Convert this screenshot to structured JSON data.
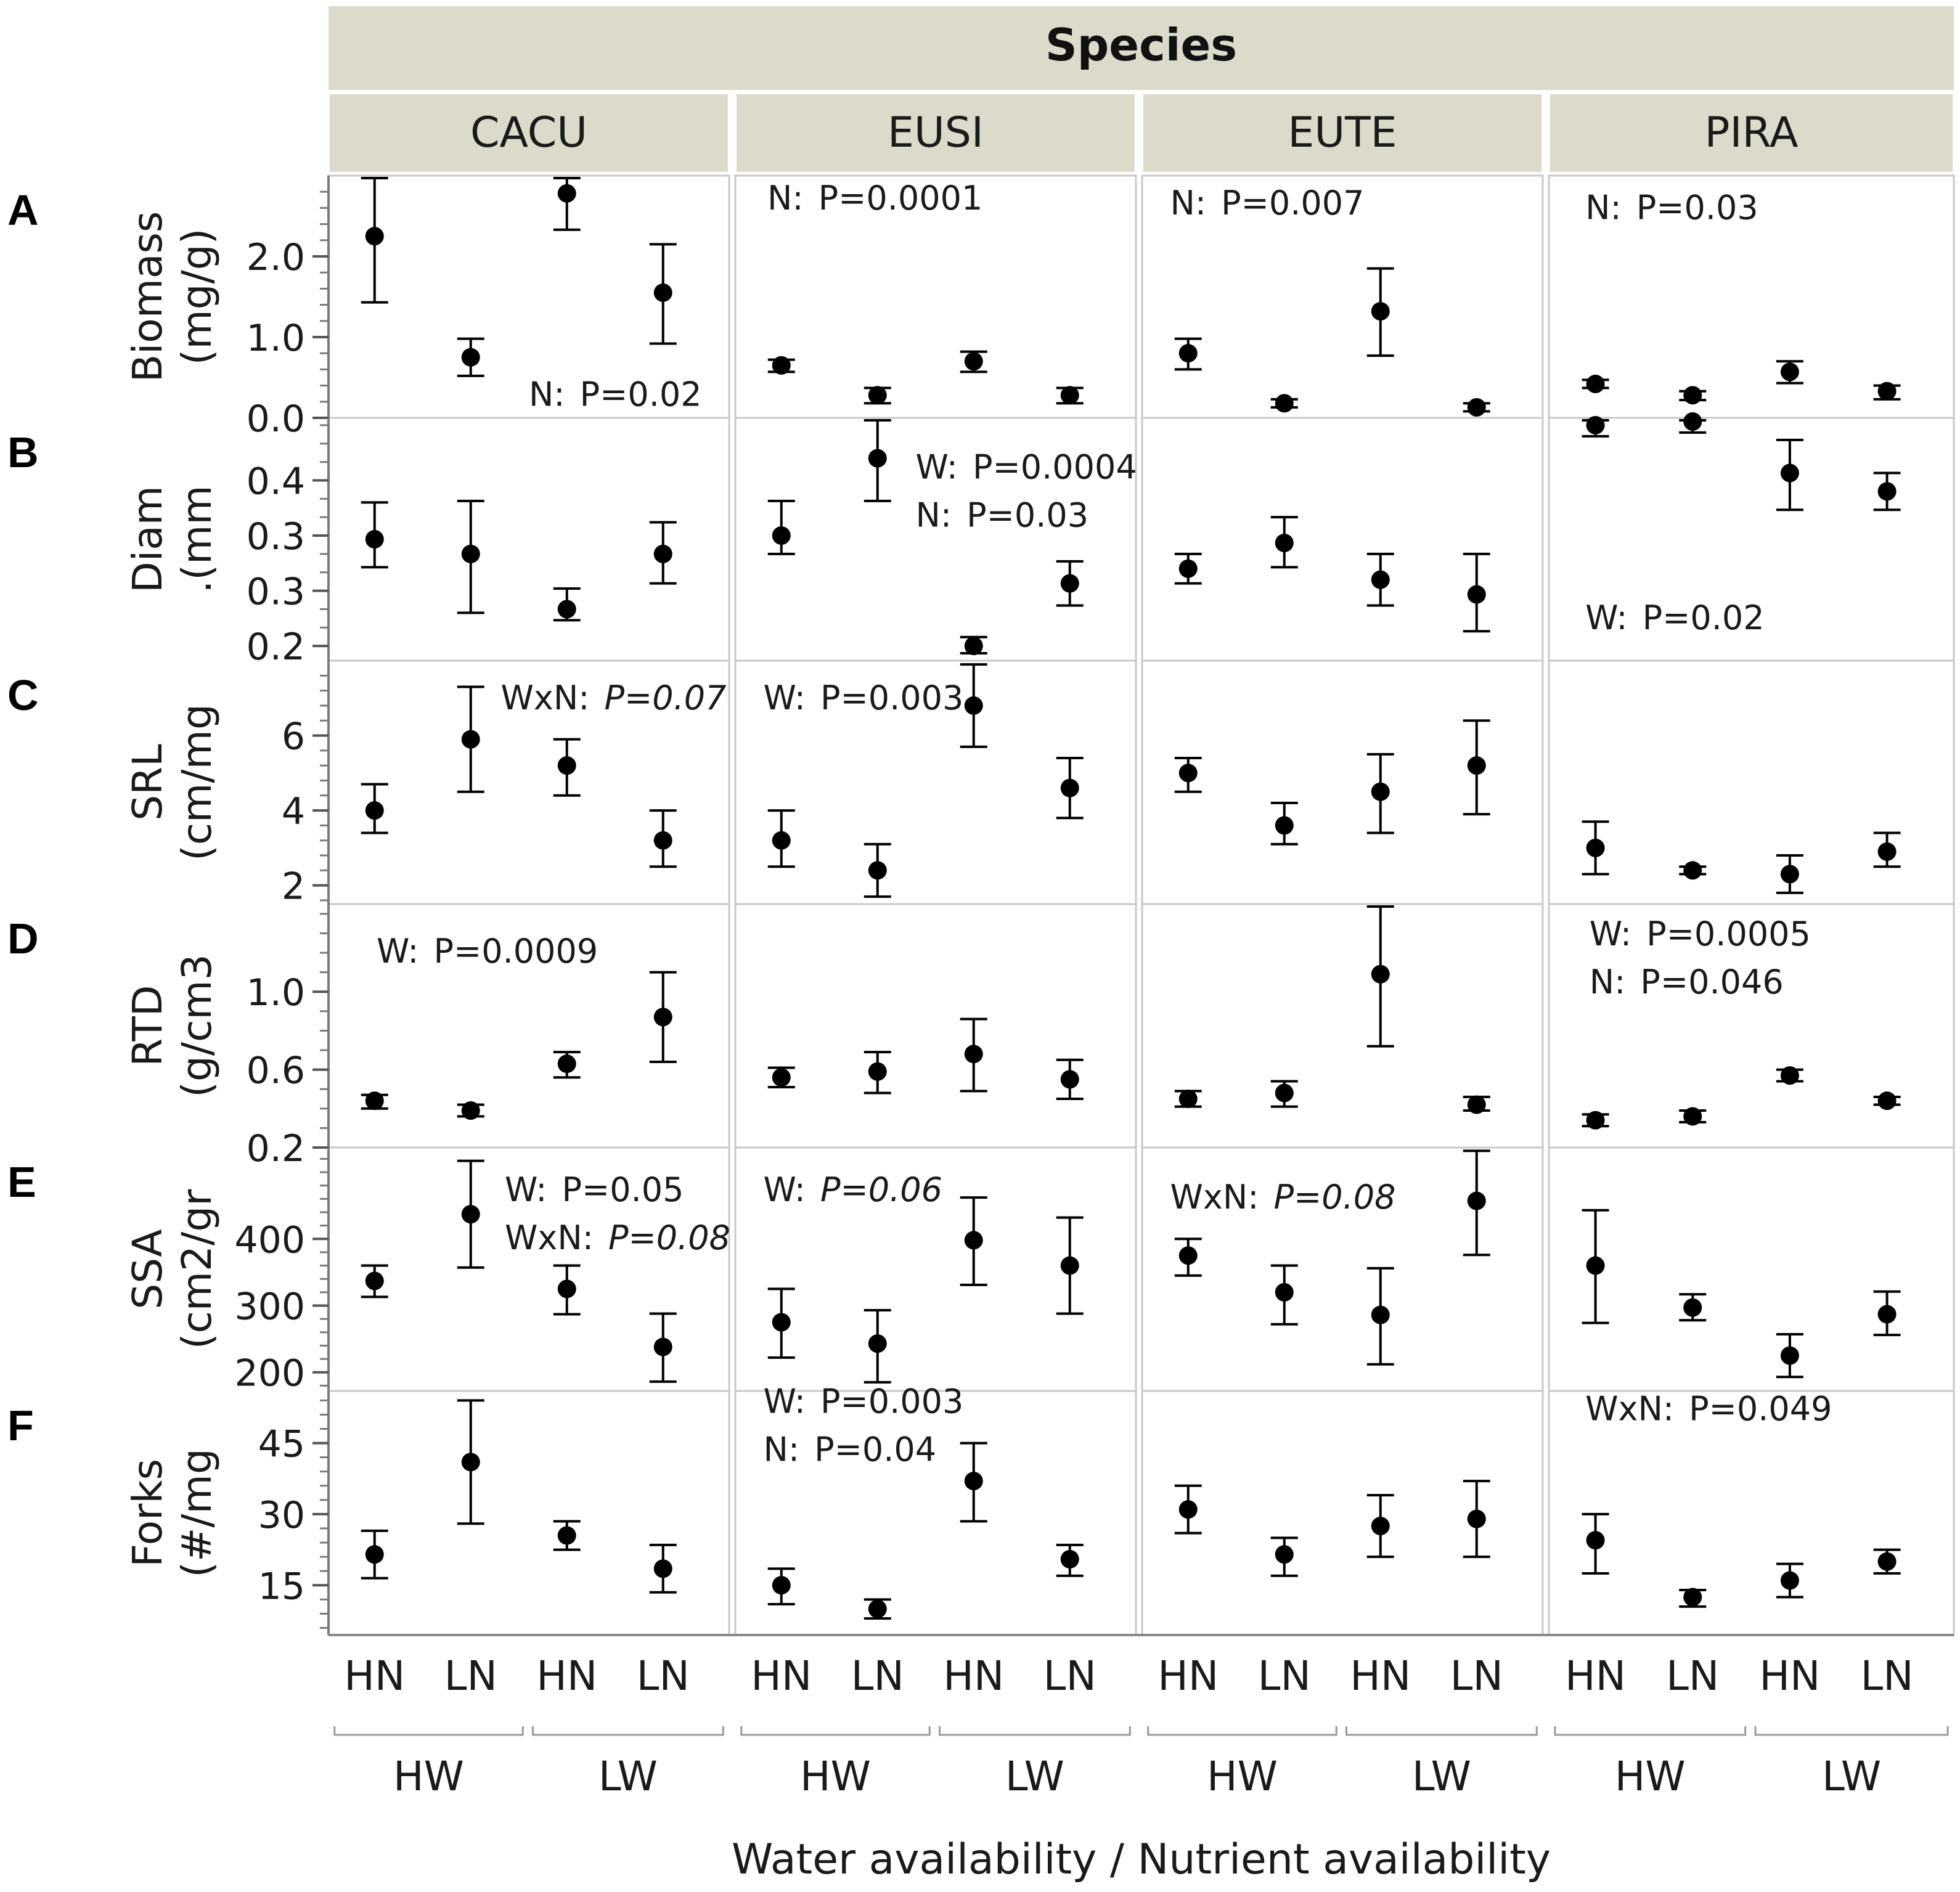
{
  "chart_data": {
    "type": "errorbar-grid",
    "title": "Species",
    "xlabel": "Water availability / Nutrient availability",
    "species": [
      "CACU",
      "EUSI",
      "EUTE",
      "PIRA"
    ],
    "treatments": [
      {
        "water": "HW",
        "nutrient": "HN"
      },
      {
        "water": "HW",
        "nutrient": "LN"
      },
      {
        "water": "LW",
        "nutrient": "HN"
      },
      {
        "water": "LW",
        "nutrient": "LN"
      }
    ],
    "nutrient_labels": [
      "HN",
      "LN",
      "HN",
      "LN"
    ],
    "water_labels": [
      "HW",
      "LW"
    ],
    "colors": {
      "header_bg": "#dcdacb",
      "frame": "#c8c8c8",
      "mark": "#000000",
      "text": "#1a1a1a"
    },
    "rows": [
      {
        "letter": "A",
        "ylabel_lines": [
          "Biomass",
          "(mg/g)"
        ],
        "ylim": [
          0.0,
          3.0
        ],
        "ticks": [
          {
            "v": 0.0,
            "label": "0.0"
          },
          {
            "v": 1.0,
            "label": "1.0"
          },
          {
            "v": 2.0,
            "label": "2.0"
          }
        ],
        "minor_step": 0.2,
        "series": {
          "CACU": [
            {
              "mean": 2.25,
              "lo": 1.43,
              "hi": 3.05
            },
            {
              "mean": 0.75,
              "lo": 0.52,
              "hi": 0.98
            },
            {
              "mean": 2.78,
              "lo": 2.33,
              "hi": 3.17
            },
            {
              "mean": 1.55,
              "lo": 0.92,
              "hi": 2.15
            }
          ],
          "EUSI": [
            {
              "mean": 0.65,
              "lo": 0.57,
              "hi": 0.72
            },
            {
              "mean": 0.28,
              "lo": 0.18,
              "hi": 0.37
            },
            {
              "mean": 0.7,
              "lo": 0.57,
              "hi": 0.82
            },
            {
              "mean": 0.28,
              "lo": 0.18,
              "hi": 0.37
            }
          ],
          "EUTE": [
            {
              "mean": 0.8,
              "lo": 0.6,
              "hi": 0.98
            },
            {
              "mean": 0.18,
              "lo": 0.13,
              "hi": 0.23
            },
            {
              "mean": 1.32,
              "lo": 0.77,
              "hi": 1.85
            },
            {
              "mean": 0.13,
              "lo": 0.08,
              "hi": 0.18
            }
          ],
          "PIRA": [
            {
              "mean": 0.42,
              "lo": 0.37,
              "hi": 0.47
            },
            {
              "mean": 0.28,
              "lo": 0.22,
              "hi": 0.33
            },
            {
              "mean": 0.57,
              "lo": 0.43,
              "hi": 0.7
            },
            {
              "mean": 0.33,
              "lo": 0.23,
              "hi": 0.4
            }
          ]
        },
        "annotations": [
          {
            "species": "CACU",
            "at": [
              0.5,
              0.05
            ],
            "lines": [
              {
                "label": "N:",
                "p": "P=0.02",
                "italic": false
              }
            ]
          },
          {
            "species": "EUSI",
            "at": [
              0.08,
              0.86
            ],
            "lines": [
              {
                "label": "N:",
                "p": "P=0.0001",
                "italic": false
              }
            ]
          },
          {
            "species": "EUTE",
            "at": [
              0.07,
              0.84
            ],
            "lines": [
              {
                "label": "N:",
                "p": "P=0.007",
                "italic": false
              }
            ]
          },
          {
            "species": "PIRA",
            "at": [
              0.09,
              0.82
            ],
            "lines": [
              {
                "label": "N:",
                "p": "P=0.03",
                "italic": false
              }
            ]
          }
        ]
      },
      {
        "letter": "B",
        "ylabel_lines": [
          "Diam",
          ".(mm"
        ],
        "ylim": [
          0.18,
          0.51
        ],
        "ticks": [
          {
            "v": 0.2,
            "label": "0.2"
          },
          {
            "v": 0.275,
            "label": "0.3"
          },
          {
            "v": 0.35,
            "label": "0.3"
          },
          {
            "v": 0.425,
            "label": "0.4"
          }
        ],
        "minor_step": 0.025,
        "series": {
          "CACU": [
            {
              "mean": 0.345,
              "lo": 0.307,
              "hi": 0.395
            },
            {
              "mean": 0.325,
              "lo": 0.245,
              "hi": 0.397
            },
            {
              "mean": 0.25,
              "lo": 0.235,
              "hi": 0.278
            },
            {
              "mean": 0.325,
              "lo": 0.285,
              "hi": 0.368
            }
          ],
          "EUSI": [
            {
              "mean": 0.35,
              "lo": 0.325,
              "hi": 0.397
            },
            {
              "mean": 0.455,
              "lo": 0.397,
              "hi": 0.515
            },
            {
              "mean": 0.2,
              "lo": 0.19,
              "hi": 0.212
            },
            {
              "mean": 0.285,
              "lo": 0.255,
              "hi": 0.315
            }
          ],
          "EUTE": [
            {
              "mean": 0.305,
              "lo": 0.285,
              "hi": 0.325
            },
            {
              "mean": 0.34,
              "lo": 0.307,
              "hi": 0.375
            },
            {
              "mean": 0.29,
              "lo": 0.255,
              "hi": 0.325
            },
            {
              "mean": 0.27,
              "lo": 0.22,
              "hi": 0.325
            }
          ],
          "PIRA": [
            {
              "mean": 0.5,
              "lo": 0.485,
              "hi": 0.52
            },
            {
              "mean": 0.505,
              "lo": 0.49,
              "hi": 0.522
            },
            {
              "mean": 0.435,
              "lo": 0.385,
              "hi": 0.48
            },
            {
              "mean": 0.41,
              "lo": 0.385,
              "hi": 0.435
            }
          ]
        },
        "annotations": [
          {
            "species": "EUSI",
            "at": [
              0.45,
              0.75
            ],
            "lines": [
              {
                "label": "W:",
                "p": "P=0.0004",
                "italic": false
              },
              {
                "label": "N:",
                "p": "P=0.03",
                "italic": false
              }
            ]
          },
          {
            "species": "PIRA",
            "at": [
              0.09,
              0.13
            ],
            "lines": [
              {
                "label": "W:",
                "p": "P=0.02",
                "italic": false
              }
            ]
          }
        ]
      },
      {
        "letter": "C",
        "ylabel_lines": [
          "SRL",
          "(cm/mg"
        ],
        "ylim": [
          1.5,
          8.0
        ],
        "ticks": [
          {
            "v": 2,
            "label": "2"
          },
          {
            "v": 4,
            "label": "4"
          },
          {
            "v": 6,
            "label": "6"
          }
        ],
        "minor_step": 0.4,
        "series": {
          "CACU": [
            {
              "mean": 4.0,
              "lo": 3.4,
              "hi": 4.7
            },
            {
              "mean": 5.9,
              "lo": 4.5,
              "hi": 7.3
            },
            {
              "mean": 5.2,
              "lo": 4.4,
              "hi": 5.9
            },
            {
              "mean": 3.2,
              "lo": 2.5,
              "hi": 4.0
            }
          ],
          "EUSI": [
            {
              "mean": 3.2,
              "lo": 2.5,
              "hi": 4.0
            },
            {
              "mean": 2.4,
              "lo": 1.7,
              "hi": 3.1
            },
            {
              "mean": 6.8,
              "lo": 5.7,
              "hi": 7.9
            },
            {
              "mean": 4.6,
              "lo": 3.8,
              "hi": 5.4
            }
          ],
          "EUTE": [
            {
              "mean": 5.0,
              "lo": 4.5,
              "hi": 5.4
            },
            {
              "mean": 3.6,
              "lo": 3.1,
              "hi": 4.2
            },
            {
              "mean": 4.5,
              "lo": 3.4,
              "hi": 5.5
            },
            {
              "mean": 5.2,
              "lo": 3.9,
              "hi": 6.4
            }
          ],
          "PIRA": [
            {
              "mean": 3.0,
              "lo": 2.3,
              "hi": 3.7
            },
            {
              "mean": 2.4,
              "lo": 2.3,
              "hi": 2.5
            },
            {
              "mean": 2.3,
              "lo": 1.8,
              "hi": 2.8
            },
            {
              "mean": 2.9,
              "lo": 2.5,
              "hi": 3.4
            }
          ]
        },
        "annotations": [
          {
            "species": "CACU",
            "at": [
              0.43,
              0.8
            ],
            "lines": [
              {
                "label": "WxN:",
                "p": "P=0.07",
                "italic": true
              }
            ]
          },
          {
            "species": "EUSI",
            "at": [
              0.07,
              0.8
            ],
            "lines": [
              {
                "label": "W:",
                "p": "P=0.003",
                "italic": false
              }
            ]
          }
        ]
      },
      {
        "letter": "D",
        "ylabel_lines": [
          "RTD",
          "(g/cm3"
        ],
        "ylim": [
          0.2,
          1.45
        ],
        "ticks": [
          {
            "v": 0.2,
            "label": "0.2"
          },
          {
            "v": 0.6,
            "label": "0.6"
          },
          {
            "v": 1.0,
            "label": "1.0"
          }
        ],
        "minor_step": 0.1,
        "series": {
          "CACU": [
            {
              "mean": 0.44,
              "lo": 0.4,
              "hi": 0.47
            },
            {
              "mean": 0.39,
              "lo": 0.36,
              "hi": 0.42
            },
            {
              "mean": 0.63,
              "lo": 0.56,
              "hi": 0.69
            },
            {
              "mean": 0.87,
              "lo": 0.64,
              "hi": 1.1
            }
          ],
          "EUSI": [
            {
              "mean": 0.56,
              "lo": 0.51,
              "hi": 0.61
            },
            {
              "mean": 0.59,
              "lo": 0.48,
              "hi": 0.69
            },
            {
              "mean": 0.68,
              "lo": 0.49,
              "hi": 0.86
            },
            {
              "mean": 0.55,
              "lo": 0.45,
              "hi": 0.65
            }
          ],
          "EUTE": [
            {
              "mean": 0.45,
              "lo": 0.41,
              "hi": 0.49
            },
            {
              "mean": 0.48,
              "lo": 0.41,
              "hi": 0.54
            },
            {
              "mean": 1.09,
              "lo": 0.72,
              "hi": 1.45
            },
            {
              "mean": 0.42,
              "lo": 0.39,
              "hi": 0.46
            }
          ],
          "PIRA": [
            {
              "mean": 0.34,
              "lo": 0.31,
              "hi": 0.37
            },
            {
              "mean": 0.36,
              "lo": 0.33,
              "hi": 0.39
            },
            {
              "mean": 0.57,
              "lo": 0.54,
              "hi": 0.6
            },
            {
              "mean": 0.44,
              "lo": 0.42,
              "hi": 0.46
            }
          ]
        },
        "annotations": [
          {
            "species": "CACU",
            "at": [
              0.12,
              0.76
            ],
            "lines": [
              {
                "label": "W:",
                "p": "P=0.0009",
                "italic": false
              }
            ]
          },
          {
            "species": "PIRA",
            "at": [
              0.1,
              0.83
            ],
            "lines": [
              {
                "label": "W:",
                "p": "P=0.0005",
                "italic": false
              },
              {
                "label": "N:",
                "p": "P=0.046",
                "italic": false
              }
            ]
          }
        ]
      },
      {
        "letter": "E",
        "ylabel_lines": [
          "SSA",
          "(cm2/gr"
        ],
        "ylim": [
          172,
          537
        ],
        "ticks": [
          {
            "v": 200,
            "label": "200"
          },
          {
            "v": 300,
            "label": "300"
          },
          {
            "v": 400,
            "label": "400"
          }
        ],
        "minor_step": 20,
        "series": {
          "CACU": [
            {
              "mean": 337,
              "lo": 313,
              "hi": 360
            },
            {
              "mean": 437,
              "lo": 357,
              "hi": 517
            },
            {
              "mean": 325,
              "lo": 287,
              "hi": 360
            },
            {
              "mean": 238,
              "lo": 186,
              "hi": 288
            }
          ],
          "EUSI": [
            {
              "mean": 275,
              "lo": 222,
              "hi": 325
            },
            {
              "mean": 243,
              "lo": 185,
              "hi": 293
            },
            {
              "mean": 398,
              "lo": 331,
              "hi": 462
            },
            {
              "mean": 360,
              "lo": 288,
              "hi": 432
            }
          ],
          "EUTE": [
            {
              "mean": 375,
              "lo": 345,
              "hi": 400
            },
            {
              "mean": 320,
              "lo": 272,
              "hi": 360
            },
            {
              "mean": 286,
              "lo": 212,
              "hi": 356
            },
            {
              "mean": 457,
              "lo": 376,
              "hi": 532
            }
          ],
          "PIRA": [
            {
              "mean": 360,
              "lo": 274,
              "hi": 443
            },
            {
              "mean": 297,
              "lo": 278,
              "hi": 317
            },
            {
              "mean": 225,
              "lo": 193,
              "hi": 257
            },
            {
              "mean": 287,
              "lo": 256,
              "hi": 321
            }
          ]
        },
        "annotations": [
          {
            "species": "CACU",
            "at": [
              0.44,
              0.78
            ],
            "lines": [
              {
                "label": "W:",
                "p": "P=0.05",
                "italic": false
              },
              {
                "label": "WxN:",
                "p": "P=0.08",
                "italic": true
              }
            ]
          },
          {
            "species": "EUSI",
            "at": [
              0.07,
              0.78
            ],
            "lines": [
              {
                "label": "W:",
                "p": "P=0.06",
                "italic": true
              }
            ]
          },
          {
            "species": "EUTE",
            "at": [
              0.07,
              0.75
            ],
            "lines": [
              {
                "label": "WxN:",
                "p": "P=0.08",
                "italic": true
              }
            ]
          }
        ]
      },
      {
        "letter": "F",
        "ylabel_lines": [
          "Forks",
          "(#/mg"
        ],
        "ylim": [
          4.5,
          56
        ],
        "ticks": [
          {
            "v": 15,
            "label": "15"
          },
          {
            "v": 30,
            "label": "30"
          },
          {
            "v": 45,
            "label": "45"
          }
        ],
        "minor_step": 3,
        "series": {
          "CACU": [
            {
              "mean": 21.5,
              "lo": 16.5,
              "hi": 26.5
            },
            {
              "mean": 41,
              "lo": 28,
              "hi": 54
            },
            {
              "mean": 25.5,
              "lo": 22.5,
              "hi": 28.5
            },
            {
              "mean": 18.5,
              "lo": 13.5,
              "hi": 23.5
            }
          ],
          "EUSI": [
            {
              "mean": 15,
              "lo": 11,
              "hi": 18.5
            },
            {
              "mean": 10,
              "lo": 8,
              "hi": 12
            },
            {
              "mean": 37,
              "lo": 28.5,
              "hi": 45
            },
            {
              "mean": 20.5,
              "lo": 17,
              "hi": 23.5
            }
          ],
          "EUTE": [
            {
              "mean": 31,
              "lo": 26,
              "hi": 36
            },
            {
              "mean": 21.5,
              "lo": 17,
              "hi": 25
            },
            {
              "mean": 27.5,
              "lo": 21,
              "hi": 34
            },
            {
              "mean": 29,
              "lo": 21,
              "hi": 37
            }
          ],
          "PIRA": [
            {
              "mean": 24.5,
              "lo": 17.5,
              "hi": 30
            },
            {
              "mean": 12.5,
              "lo": 10.5,
              "hi": 14
            },
            {
              "mean": 16,
              "lo": 12.5,
              "hi": 19.5
            },
            {
              "mean": 20,
              "lo": 17.5,
              "hi": 22.5
            }
          ]
        },
        "annotations": [
          {
            "species": "EUSI",
            "at": [
              0.07,
              0.91
            ],
            "lines": [
              {
                "label": "W:",
                "p": "P=0.003",
                "italic": false
              },
              {
                "label": "N:",
                "p": "P=0.04",
                "italic": false
              }
            ]
          },
          {
            "species": "PIRA",
            "at": [
              0.09,
              0.88
            ],
            "lines": [
              {
                "label": "WxN:",
                "p": "P=0.049",
                "italic": false
              }
            ]
          }
        ]
      }
    ]
  }
}
